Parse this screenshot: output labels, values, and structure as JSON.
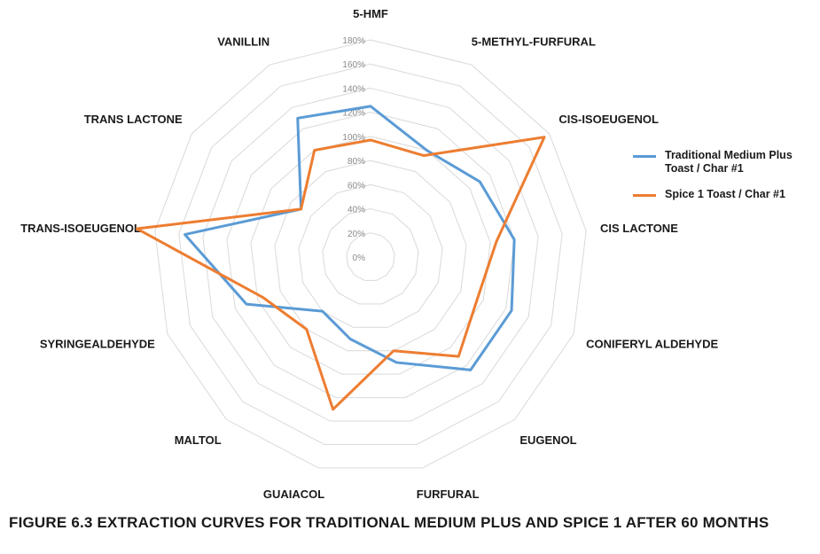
{
  "chart_data": {
    "type": "radar",
    "title": "",
    "categories": [
      "5-HMF",
      "5-METHYL-FURFURAL",
      "CIS-ISOEUGENOL",
      "CIS LACTONE",
      "CONIFERYL ALDEHYDE",
      "EUGENOL",
      "FURFURAL",
      "GUAIACOL",
      "MALTOL",
      "SYRINGEALDEHYDE",
      "TRANS-ISOEUGENOL",
      "TRANS LACTONE",
      "VANILLIN"
    ],
    "radial_ticks": [
      "0%",
      "20%",
      "40%",
      "60%",
      "80%",
      "100%",
      "120%",
      "140%",
      "160%",
      "180%"
    ],
    "rmax": 180,
    "series": [
      {
        "name": "Traditional Medium Plus Toast / Char #1",
        "color": "#5b9bd5",
        "values": [
          125,
          100,
          110,
          120,
          125,
          125,
          90,
          70,
          60,
          110,
          155,
          70,
          130
        ]
      },
      {
        "name": "Spice 1 Toast / Char #1",
        "color": "#ed7d31",
        "values": [
          97,
          95,
          175,
          105,
          95,
          110,
          80,
          130,
          80,
          95,
          195,
          70,
          100
        ]
      }
    ]
  },
  "legend": {
    "items": [
      {
        "label": "Traditional Medium Plus Toast / Char #1",
        "color": "#5b9bd5"
      },
      {
        "label": "Spice 1 Toast / Char #1",
        "color": "#ed7d31"
      }
    ]
  },
  "caption": "FIGURE 6.3  EXTRACTION CURVES FOR TRADITIONAL MEDIUM PLUS AND SPICE 1 AFTER 60 MONTHS"
}
